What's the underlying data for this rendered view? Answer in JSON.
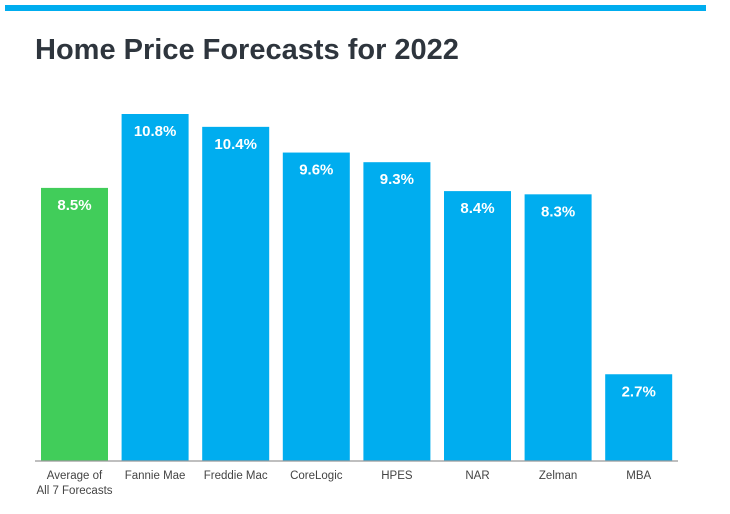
{
  "chart_data": {
    "type": "bar",
    "title": "Home Price Forecasts for 2022",
    "categories": [
      "Average of\nAll 7 Forecasts",
      "Fannie Mae",
      "Freddie Mac",
      "CoreLogic",
      "HPES",
      "NAR",
      "Zelman",
      "MBA"
    ],
    "values": [
      8.5,
      10.8,
      10.4,
      9.6,
      9.3,
      8.4,
      8.3,
      2.7
    ],
    "data_labels": [
      "8.5%",
      "10.8%",
      "10.4%",
      "9.6%",
      "9.3%",
      "8.4%",
      "8.3%",
      "2.7%"
    ],
    "colors": [
      "#41cd5a",
      "#00adef",
      "#00adef",
      "#00adef",
      "#00adef",
      "#00adef",
      "#00adef",
      "#00adef"
    ],
    "xlabel": "",
    "ylabel": "",
    "ylim": [
      0,
      10.8
    ],
    "grid": false
  }
}
